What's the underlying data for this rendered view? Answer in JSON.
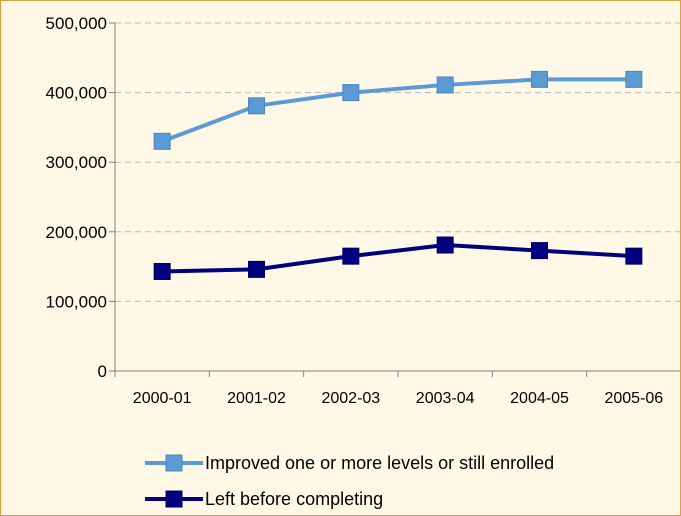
{
  "chart_data": {
    "type": "line",
    "title": "",
    "xlabel": "",
    "ylabel": "",
    "categories": [
      "2000-01",
      "2001-02",
      "2002-03",
      "2003-04",
      "2004-05",
      "2005-06"
    ],
    "y_ticks": [
      "0",
      "100,000",
      "200,000",
      "300,000",
      "400,000",
      "500,000"
    ],
    "ylim": [
      0,
      500000
    ],
    "grid": "horizontal dashed",
    "legend_position": "bottom",
    "series": [
      {
        "name": "Improved one or more levels or still enrolled",
        "values": [
          330000,
          381000,
          400000,
          411000,
          419000,
          419000
        ],
        "color": "#5B9BD5",
        "marker": "square"
      },
      {
        "name": "Left before completing",
        "values": [
          143000,
          146000,
          165000,
          181000,
          173000,
          165000
        ],
        "color": "#000080",
        "marker": "square"
      }
    ]
  }
}
